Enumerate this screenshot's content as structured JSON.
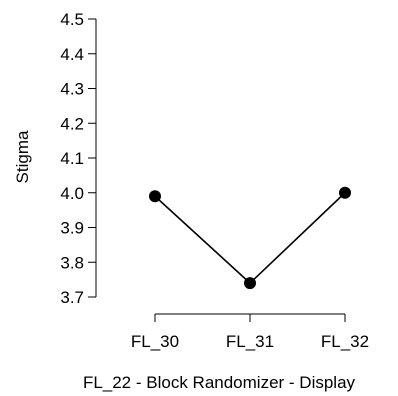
{
  "chart_data": {
    "type": "line",
    "title": "",
    "xlabel": "FL_22 - Block Randomizer - Display",
    "ylabel": "Stigma",
    "categories": [
      "FL_30",
      "FL_31",
      "FL_32"
    ],
    "series": [
      {
        "values": [
          3.99,
          3.74,
          4.0
        ]
      }
    ],
    "ylim": [
      3.7,
      4.5
    ],
    "yticks": [
      "3.7",
      "3.8",
      "3.9",
      "4.0",
      "4.1",
      "4.2",
      "4.3",
      "4.4",
      "4.5"
    ],
    "grid": false,
    "legend": "none",
    "colors": {
      "line": "#000000",
      "marker": "#000000",
      "axis": "#000000"
    }
  }
}
